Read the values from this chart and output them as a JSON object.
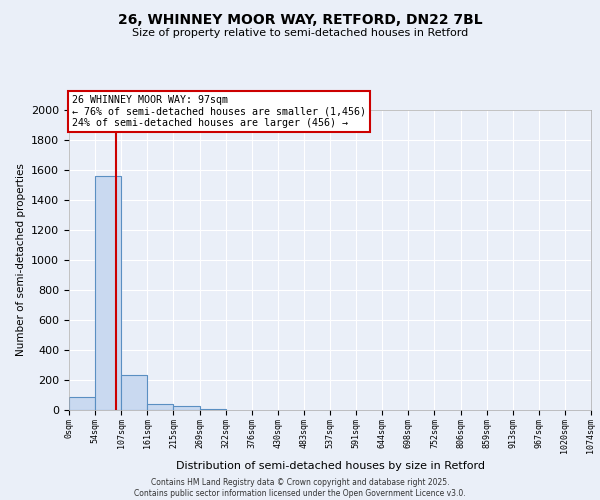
{
  "title_line1": "26, WHINNEY MOOR WAY, RETFORD, DN22 7BL",
  "title_line2": "Size of property relative to semi-detached houses in Retford",
  "xlabel": "Distribution of semi-detached houses by size in Retford",
  "ylabel": "Number of semi-detached properties",
  "bin_edges": [
    0,
    54,
    107,
    161,
    215,
    269,
    322,
    376,
    430,
    483,
    537,
    591,
    644,
    698,
    752,
    806,
    859,
    913,
    967,
    1020,
    1074
  ],
  "bar_heights": [
    90,
    1560,
    235,
    40,
    25,
    5,
    0,
    0,
    0,
    0,
    0,
    0,
    0,
    0,
    0,
    0,
    0,
    0,
    0,
    0
  ],
  "bar_color": "#c9d9f0",
  "bar_edge_color": "#5a8fc2",
  "property_size": 97,
  "vline_color": "#cc0000",
  "annotation_title": "26 WHINNEY MOOR WAY: 97sqm",
  "annotation_line1": "← 76% of semi-detached houses are smaller (1,456)",
  "annotation_line2": "24% of semi-detached houses are larger (456) →",
  "annotation_box_color": "#ffffff",
  "annotation_border_color": "#cc0000",
  "ylim": [
    0,
    2000
  ],
  "yticks": [
    0,
    200,
    400,
    600,
    800,
    1000,
    1200,
    1400,
    1600,
    1800,
    2000
  ],
  "background_color": "#eaeff8",
  "plot_area_color": "#eaeff8",
  "grid_color": "#ffffff",
  "footer_line1": "Contains HM Land Registry data © Crown copyright and database right 2025.",
  "footer_line2": "Contains public sector information licensed under the Open Government Licence v3.0."
}
